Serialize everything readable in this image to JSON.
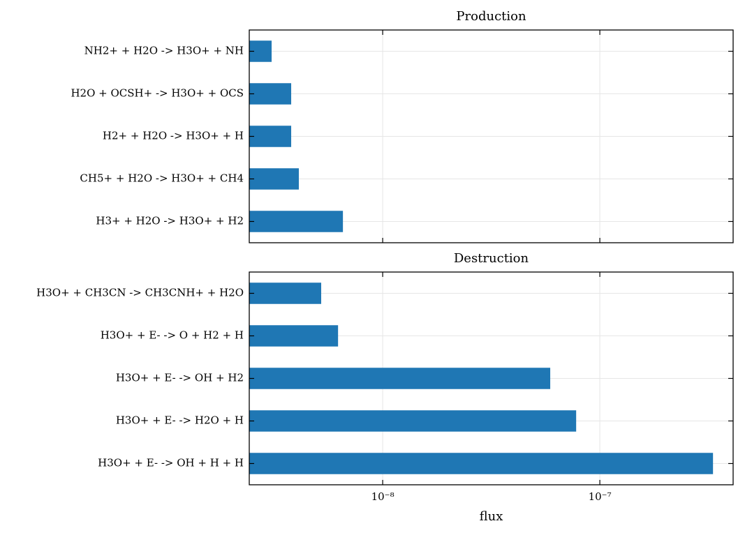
{
  "chart_data": [
    {
      "type": "barh",
      "title": "Production",
      "categories": [
        "NH2+ + H2O -> H3O+ + NH",
        "H2O + OCSH+ -> H3O+ + OCS",
        "H2+ + H2O -> H3O+ + H",
        "CH5+ + H2O -> H3O+ + CH4",
        "H3+ + H2O -> H3O+ + H2"
      ],
      "values": [
        3.08e-09,
        3.79e-09,
        3.79e-09,
        4.11e-09,
        6.56e-09
      ],
      "color": "#1f77b4",
      "xscale": "log",
      "grid": true,
      "xlim": [
        2.43e-09,
        4.11e-07
      ],
      "xticks": [
        1e-08,
        1e-07
      ]
    },
    {
      "type": "barh",
      "title": "Destruction",
      "xlabel": "flux",
      "categories": [
        "H3O+ + CH3CN -> CH3CNH+ + H2O",
        "H3O+ + E- -> O + H2 + H",
        "H3O+ + E- -> OH + H2",
        "H3O+ + E- -> H2O + H",
        "H3O+ + E- -> OH + H + H"
      ],
      "values": [
        5.21e-09,
        6.23e-09,
        5.91e-08,
        7.78e-08,
        3.32e-07
      ],
      "color": "#1f77b4",
      "xscale": "log",
      "grid": true,
      "xlim": [
        2.43e-09,
        4.11e-07
      ],
      "xticks": [
        {
          "value": 1e-08,
          "label": "10⁻⁸"
        },
        {
          "value": 1e-07,
          "label": "10⁻⁷"
        }
      ]
    }
  ]
}
